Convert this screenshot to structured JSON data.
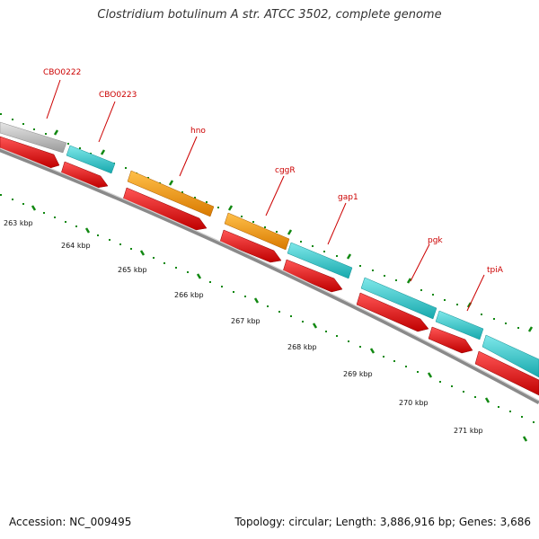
{
  "title": "Clostridium botulinum A str. ATCC 3502, complete genome",
  "accession": "Accession: NC_009495",
  "stats": "Topology: circular; Length: 3,886,916 bp; Genes: 3,686",
  "colors": {
    "gene_grey": "#b8b8b8",
    "gene_cyan": "#2ec8cc",
    "gene_orange": "#f0960f",
    "cds_red": "#e00000",
    "backbone": "#808080",
    "tick": "#118811",
    "label": "#cc0000"
  },
  "genes": [
    {
      "name": "CBO0222",
      "strand_color": "grey",
      "labelled": true
    },
    {
      "name": "CBO0223",
      "strand_color": "cyan",
      "labelled": true
    },
    {
      "name": "hno",
      "strand_color": "orange",
      "labelled": true
    },
    {
      "name": "cggR",
      "strand_color": "orange",
      "labelled": true
    },
    {
      "name": "gap1",
      "strand_color": "cyan",
      "labelled": true
    },
    {
      "name": "pgk",
      "strand_color": "cyan",
      "labelled": true
    },
    {
      "name": "tpiA",
      "strand_color": "cyan",
      "labelled": true
    }
  ],
  "scale_labels": [
    "263 kbp",
    "264 kbp",
    "265 kbp",
    "266 kbp",
    "267 kbp",
    "268 kbp",
    "269 kbp",
    "270 kbp",
    "271 kbp"
  ]
}
